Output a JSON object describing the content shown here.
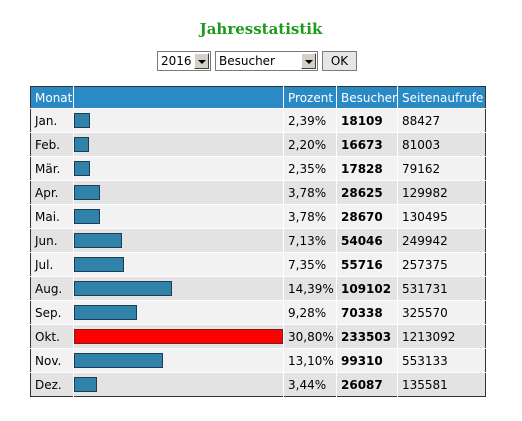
{
  "title": "Jahresstatistik",
  "controls": {
    "year": "2016",
    "metric": "Besucher",
    "ok_label": "OK"
  },
  "table": {
    "headers": [
      "Monat",
      "Prozent",
      "Besucher",
      "Seitenaufrufe"
    ],
    "rows": [
      {
        "month": "Jan.",
        "percent": "2,39%",
        "visitors": "18109",
        "pageviews": "88427",
        "share": 0.0239,
        "highlight": false
      },
      {
        "month": "Feb.",
        "percent": "2,20%",
        "visitors": "16673",
        "pageviews": "81003",
        "share": 0.022,
        "highlight": false
      },
      {
        "month": "Mär.",
        "percent": "2,35%",
        "visitors": "17828",
        "pageviews": "79162",
        "share": 0.0235,
        "highlight": false
      },
      {
        "month": "Apr.",
        "percent": "3,78%",
        "visitors": "28625",
        "pageviews": "129982",
        "share": 0.0378,
        "highlight": false
      },
      {
        "month": "Mai.",
        "percent": "3,78%",
        "visitors": "28670",
        "pageviews": "130495",
        "share": 0.0378,
        "highlight": false
      },
      {
        "month": "Jun.",
        "percent": "7,13%",
        "visitors": "54046",
        "pageviews": "249942",
        "share": 0.0713,
        "highlight": false
      },
      {
        "month": "Jul.",
        "percent": "7,35%",
        "visitors": "55716",
        "pageviews": "257375",
        "share": 0.0735,
        "highlight": false
      },
      {
        "month": "Aug.",
        "percent": "14,39%",
        "visitors": "109102",
        "pageviews": "531731",
        "share": 0.1439,
        "highlight": false
      },
      {
        "month": "Sep.",
        "percent": "9,28%",
        "visitors": "70338",
        "pageviews": "325570",
        "share": 0.0928,
        "highlight": false
      },
      {
        "month": "Okt.",
        "percent": "30,80%",
        "visitors": "233503",
        "pageviews": "1213092",
        "share": 0.308,
        "highlight": true
      },
      {
        "month": "Nov.",
        "percent": "13,10%",
        "visitors": "99310",
        "pageviews": "553133",
        "share": 0.131,
        "highlight": false
      },
      {
        "month": "Dez.",
        "percent": "3,44%",
        "visitors": "26087",
        "pageviews": "135581",
        "share": 0.0344,
        "highlight": false
      }
    ]
  },
  "colors": {
    "title": "#1f9a1f",
    "header_bg": "#2a8ac6",
    "bar": "#2f82a8",
    "bar_max": "#ff0000"
  }
}
